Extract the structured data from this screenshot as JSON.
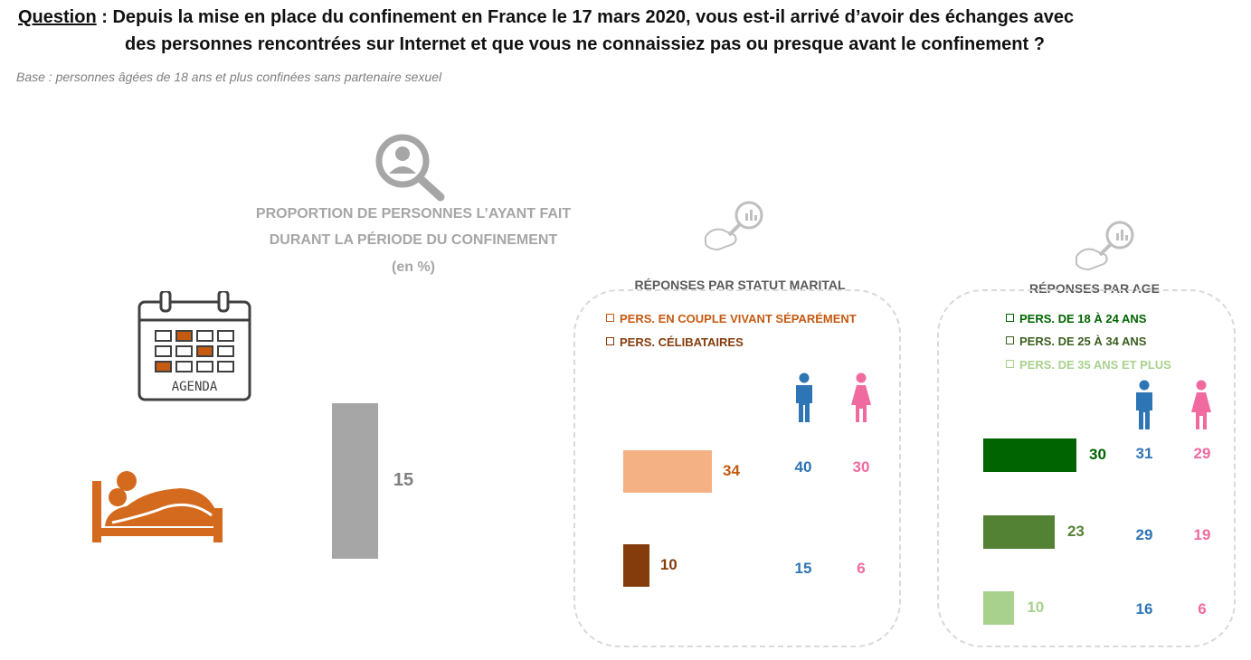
{
  "header": {
    "question_label": "Question",
    "question_line1": " : Depuis la mise en place du confinement en France le 17 mars 2020, vous est-il arrivé d’avoir des échanges avec",
    "question_line2": "des personnes rencontrées sur Internet et que vous ne connaissiez pas ou presque avant le confinement ?",
    "base": "Base : personnes âgées de 18 ans et plus confinées sans partenaire sexuel"
  },
  "overall": {
    "heading_line1": "PROPORTION DE PERSONNES L’AYANT FAIT",
    "heading_line2": "DURANT LA PÉRIODE DU CONFINEMENT",
    "unit": "(en %)",
    "agenda_label": "AGENDA"
  },
  "colors": {
    "overall_bar": "#a6a6a6",
    "couple": "#f4b183",
    "couple_text": "#c55a11",
    "celib": "#843c0c",
    "age_18_24": "#006400",
    "age_25_34": "#548235",
    "age_35_plus": "#a9d18e",
    "male": "#2e75b6",
    "female": "#f06aa0"
  },
  "icons": {
    "search": "magnifier-person-icon",
    "calendar": "calendar-icon",
    "bed": "couple-in-bed-icon",
    "hand_magnifier": "hand-magnifier-icon",
    "male": "male-icon",
    "female": "female-icon"
  },
  "chart_data": [
    {
      "type": "bar",
      "title": "PROPORTION DE PERSONNES L’AYANT FAIT DURANT LA PÉRIODE DU CONFINEMENT",
      "unit": "(en %)",
      "categories": [
        ""
      ],
      "values": [
        15
      ],
      "ylim": [
        0,
        15
      ]
    },
    {
      "type": "bar",
      "orientation": "horizontal",
      "title": "RÉPONSES PAR STATUT MARITAL",
      "categories": [
        "PERS. EN COUPLE VIVANT SÉPARÉMENT",
        "PERS. CÉLIBATAIRES"
      ],
      "values": [
        34,
        10
      ],
      "hommes": [
        40,
        15
      ],
      "femmes": [
        30,
        6
      ],
      "xlim": [
        0,
        34
      ]
    },
    {
      "type": "bar",
      "orientation": "horizontal",
      "title": "RÉPONSES PAR AGE",
      "categories": [
        "PERS. DE 18 À 24 ANS",
        "PERS. DE 25 À 34 ANS",
        "PERS. DE 35 ANS ET PLUS"
      ],
      "values": [
        30,
        23,
        10
      ],
      "hommes": [
        31,
        29,
        16
      ],
      "femmes": [
        29,
        19,
        6
      ],
      "xlim": [
        0,
        30
      ]
    }
  ]
}
